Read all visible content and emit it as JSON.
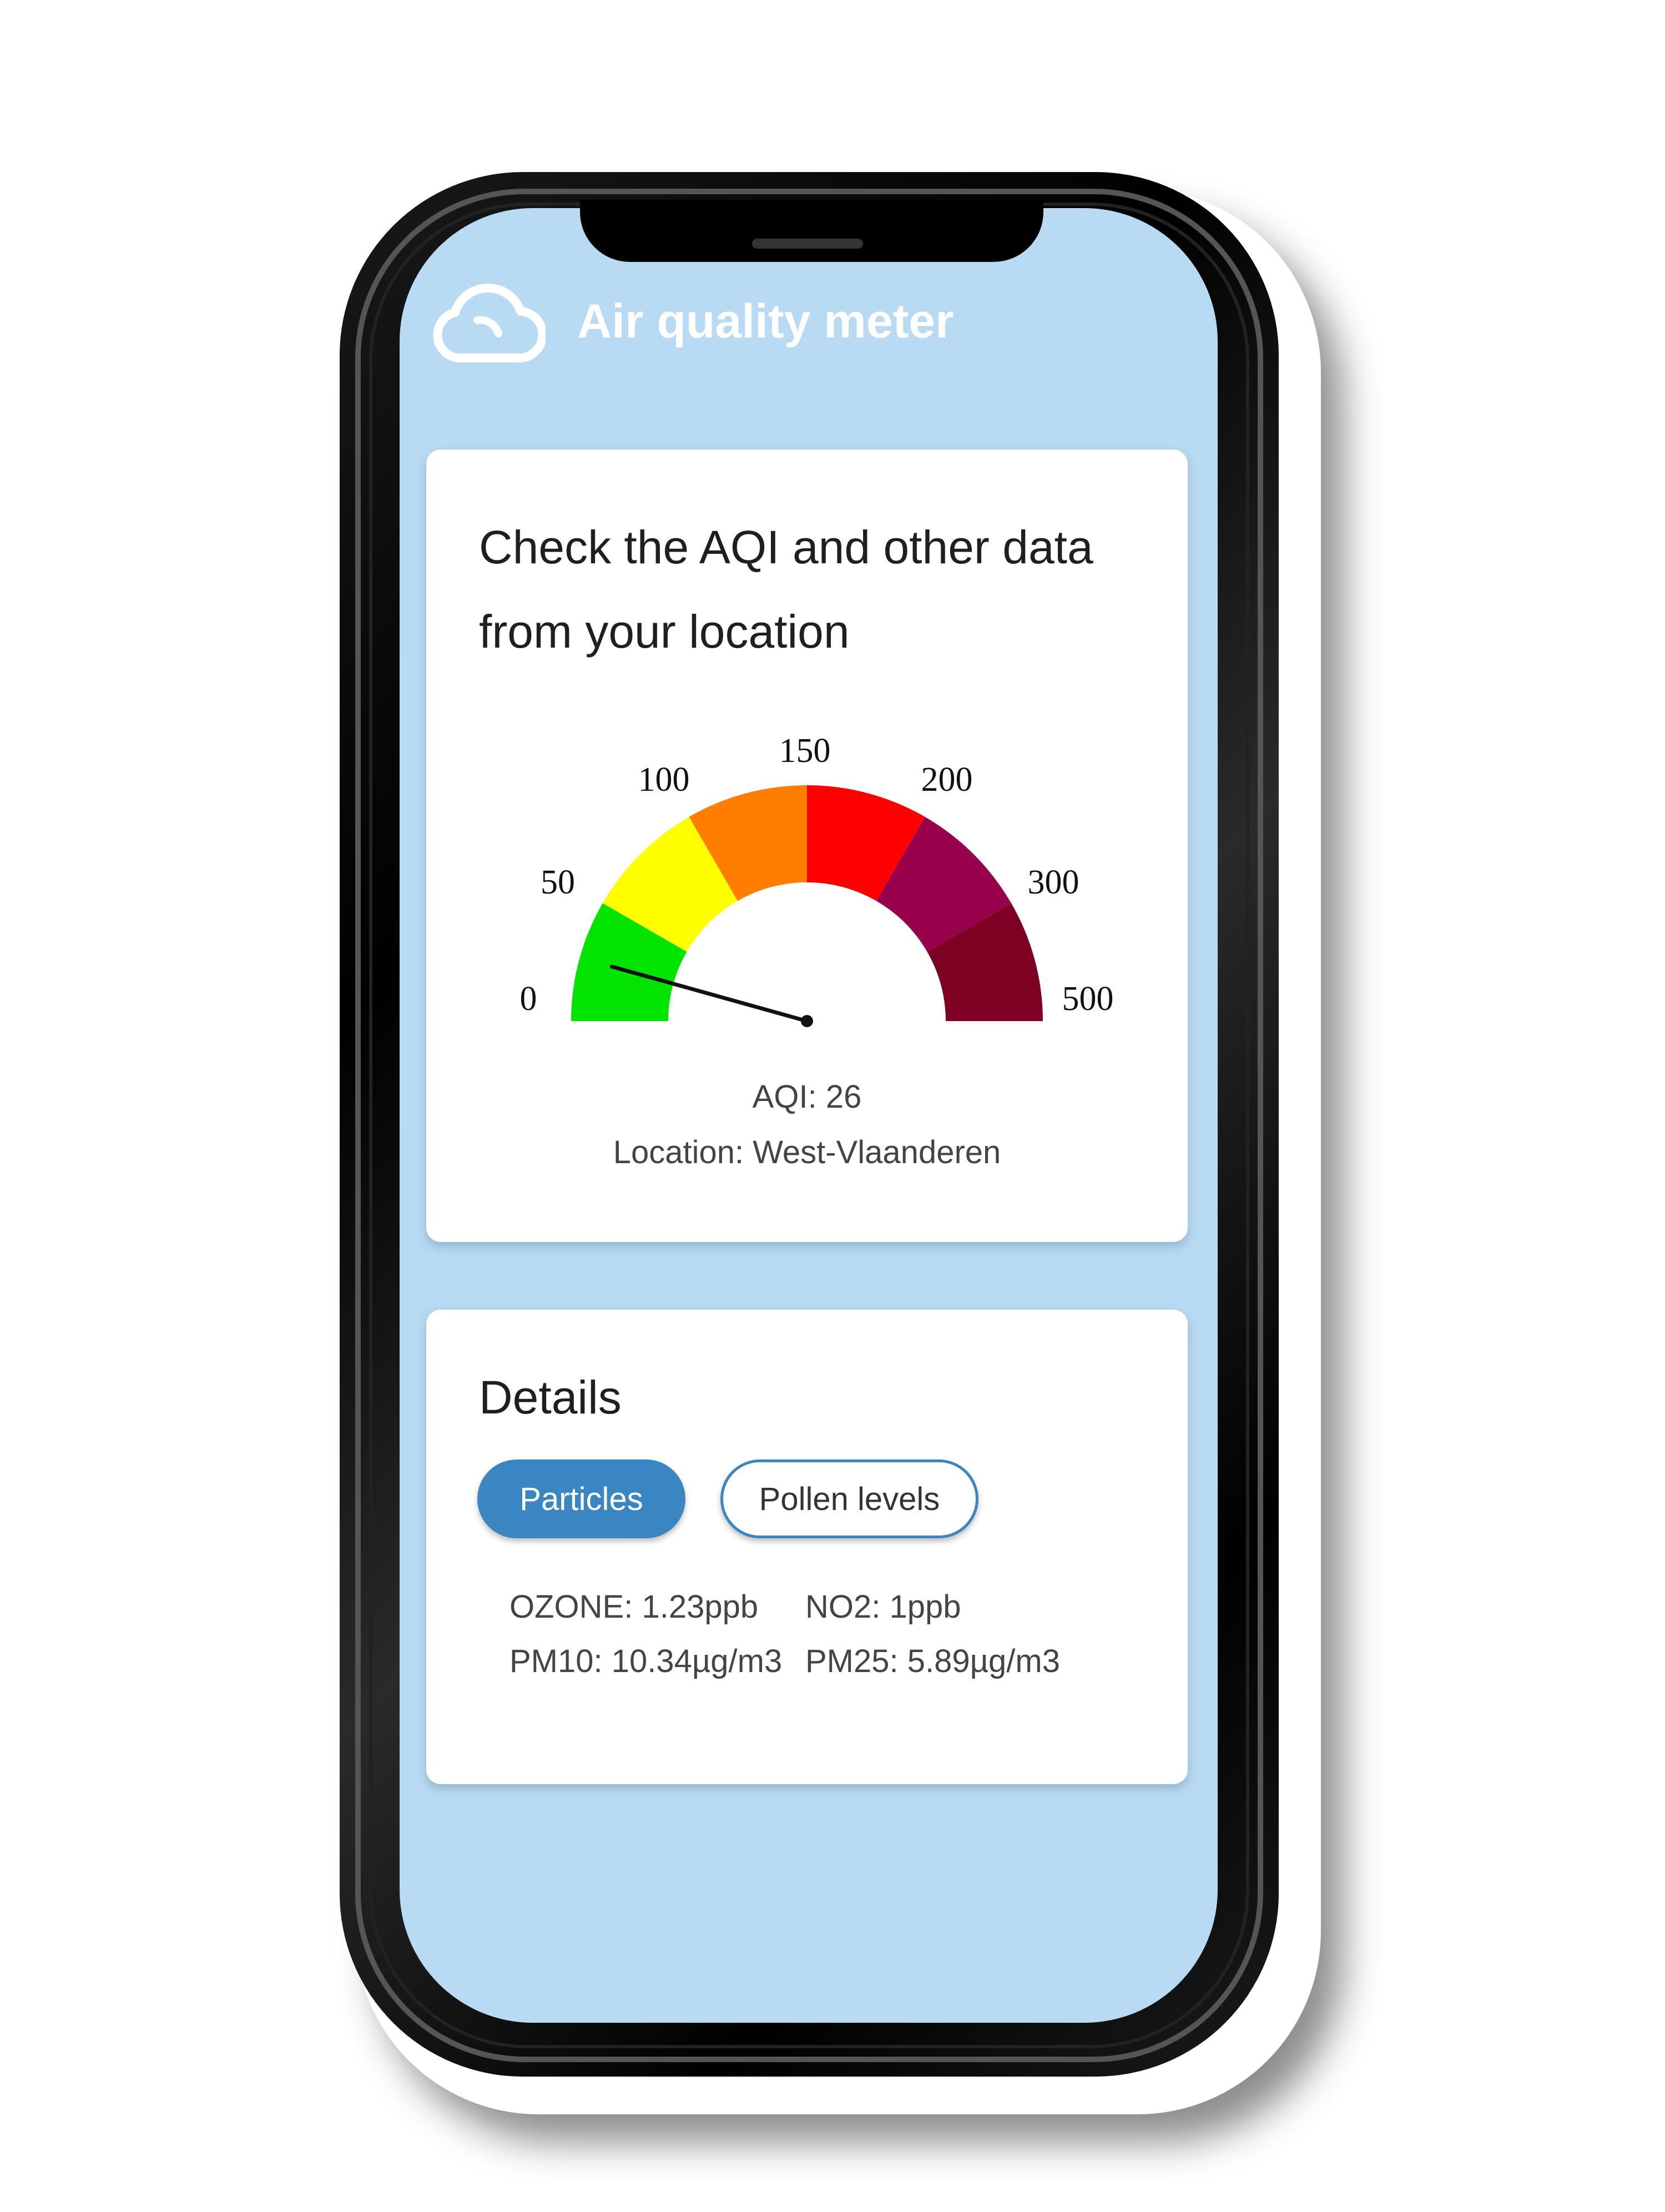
{
  "header": {
    "title": "Air quality meter",
    "icon": "cloud-icon"
  },
  "aqi_card": {
    "title": "Check the AQI and other data from your location",
    "aqi_label": "AQI: 26",
    "location_label": "Location: West-Vlaanderen"
  },
  "chart_data": {
    "type": "gauge",
    "value": 26,
    "min": 0,
    "max": 500,
    "tick_labels": [
      "0",
      "50",
      "100",
      "150",
      "200",
      "300",
      "500"
    ],
    "bands": [
      {
        "from": 0,
        "to": 50,
        "color": "#00e400"
      },
      {
        "from": 50,
        "to": 100,
        "color": "#ffff00"
      },
      {
        "from": 100,
        "to": 150,
        "color": "#ff7e00"
      },
      {
        "from": 150,
        "to": 200,
        "color": "#ff0000"
      },
      {
        "from": 200,
        "to": 300,
        "color": "#99004c"
      },
      {
        "from": 300,
        "to": 500,
        "color": "#7e0023"
      }
    ]
  },
  "details": {
    "title": "Details",
    "tabs": [
      {
        "label": "Particles",
        "active": true
      },
      {
        "label": "Pollen levels",
        "active": false
      }
    ],
    "metrics": {
      "ozone": "OZONE: 1.23ppb",
      "no2": "NO2: 1ppb",
      "pm10": "PM10: 10.34µg/m3",
      "pm25": "PM25: 5.89µg/m3"
    }
  },
  "colors": {
    "screen_bg": "#b8dbf3",
    "accent": "#3a86c2"
  }
}
